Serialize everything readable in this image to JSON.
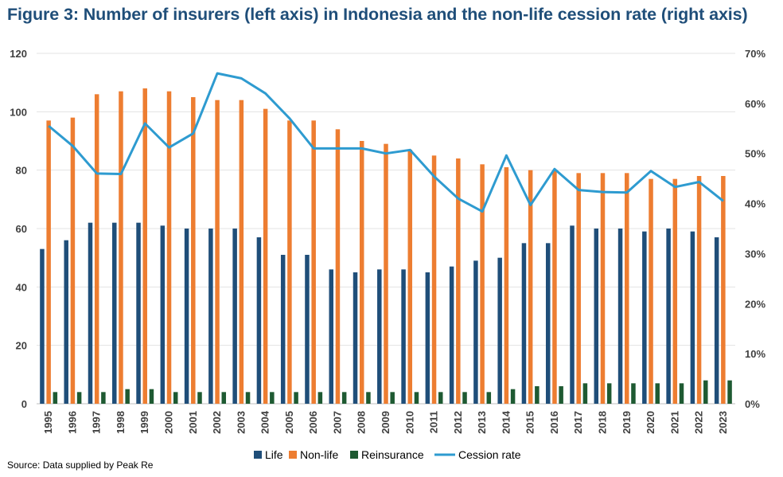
{
  "title": "Figure 3: Number of insurers (left axis) in Indonesia and the non-life cession rate (right axis)",
  "source": "Source: Data supplied by Peak Re",
  "chart_data": {
    "type": "bar",
    "categories": [
      "1995",
      "1996",
      "1997",
      "1998",
      "1999",
      "2000",
      "2001",
      "2002",
      "2003",
      "2004",
      "2005",
      "2006",
      "2007",
      "2008",
      "2009",
      "2010",
      "2011",
      "2012",
      "2013",
      "2014",
      "2015",
      "2016",
      "2017",
      "2018",
      "2019",
      "2020",
      "2021",
      "2022",
      "2023"
    ],
    "series": [
      {
        "name": "Life",
        "type": "bar",
        "axis": "left",
        "color": "#1f4e79",
        "values": [
          53,
          56,
          62,
          62,
          62,
          61,
          60,
          60,
          60,
          57,
          51,
          51,
          46,
          45,
          46,
          46,
          45,
          47,
          49,
          50,
          55,
          55,
          61,
          60,
          60,
          59,
          60,
          59,
          57
        ]
      },
      {
        "name": "Non-life",
        "type": "bar",
        "axis": "left",
        "color": "#ed7d31",
        "values": [
          97,
          98,
          106,
          107,
          108,
          107,
          105,
          104,
          104,
          101,
          97,
          97,
          94,
          90,
          89,
          87,
          85,
          84,
          82,
          81,
          80,
          80,
          79,
          79,
          79,
          77,
          77,
          78,
          78
        ]
      },
      {
        "name": "Reinsurance",
        "type": "bar",
        "axis": "left",
        "color": "#1e5a32",
        "values": [
          4,
          4,
          4,
          5,
          5,
          4,
          4,
          4,
          4,
          4,
          4,
          4,
          4,
          4,
          4,
          4,
          4,
          4,
          4,
          5,
          6,
          6,
          7,
          7,
          7,
          7,
          7,
          8,
          8
        ]
      },
      {
        "name": "Cession rate",
        "type": "line",
        "axis": "right",
        "color": "#2e9bd0",
        "values": [
          0.555,
          0.515,
          0.46,
          0.459,
          0.56,
          0.512,
          0.54,
          0.66,
          0.65,
          0.62,
          0.57,
          0.51,
          0.51,
          0.51,
          0.5,
          0.507,
          0.454,
          0.41,
          0.384,
          0.496,
          0.397,
          0.469,
          0.427,
          0.423,
          0.422,
          0.465,
          0.433,
          0.443,
          0.405
        ]
      }
    ],
    "ylim_left": [
      0,
      120
    ],
    "yticks_left": [
      "0",
      "20",
      "40",
      "60",
      "80",
      "100",
      "120"
    ],
    "ylim_right": [
      0,
      0.7
    ],
    "yticks_right": [
      "0%",
      "10%",
      "20%",
      "30%",
      "40%",
      "50%",
      "60%",
      "70%"
    ],
    "grid": true,
    "legend": "bottom"
  }
}
